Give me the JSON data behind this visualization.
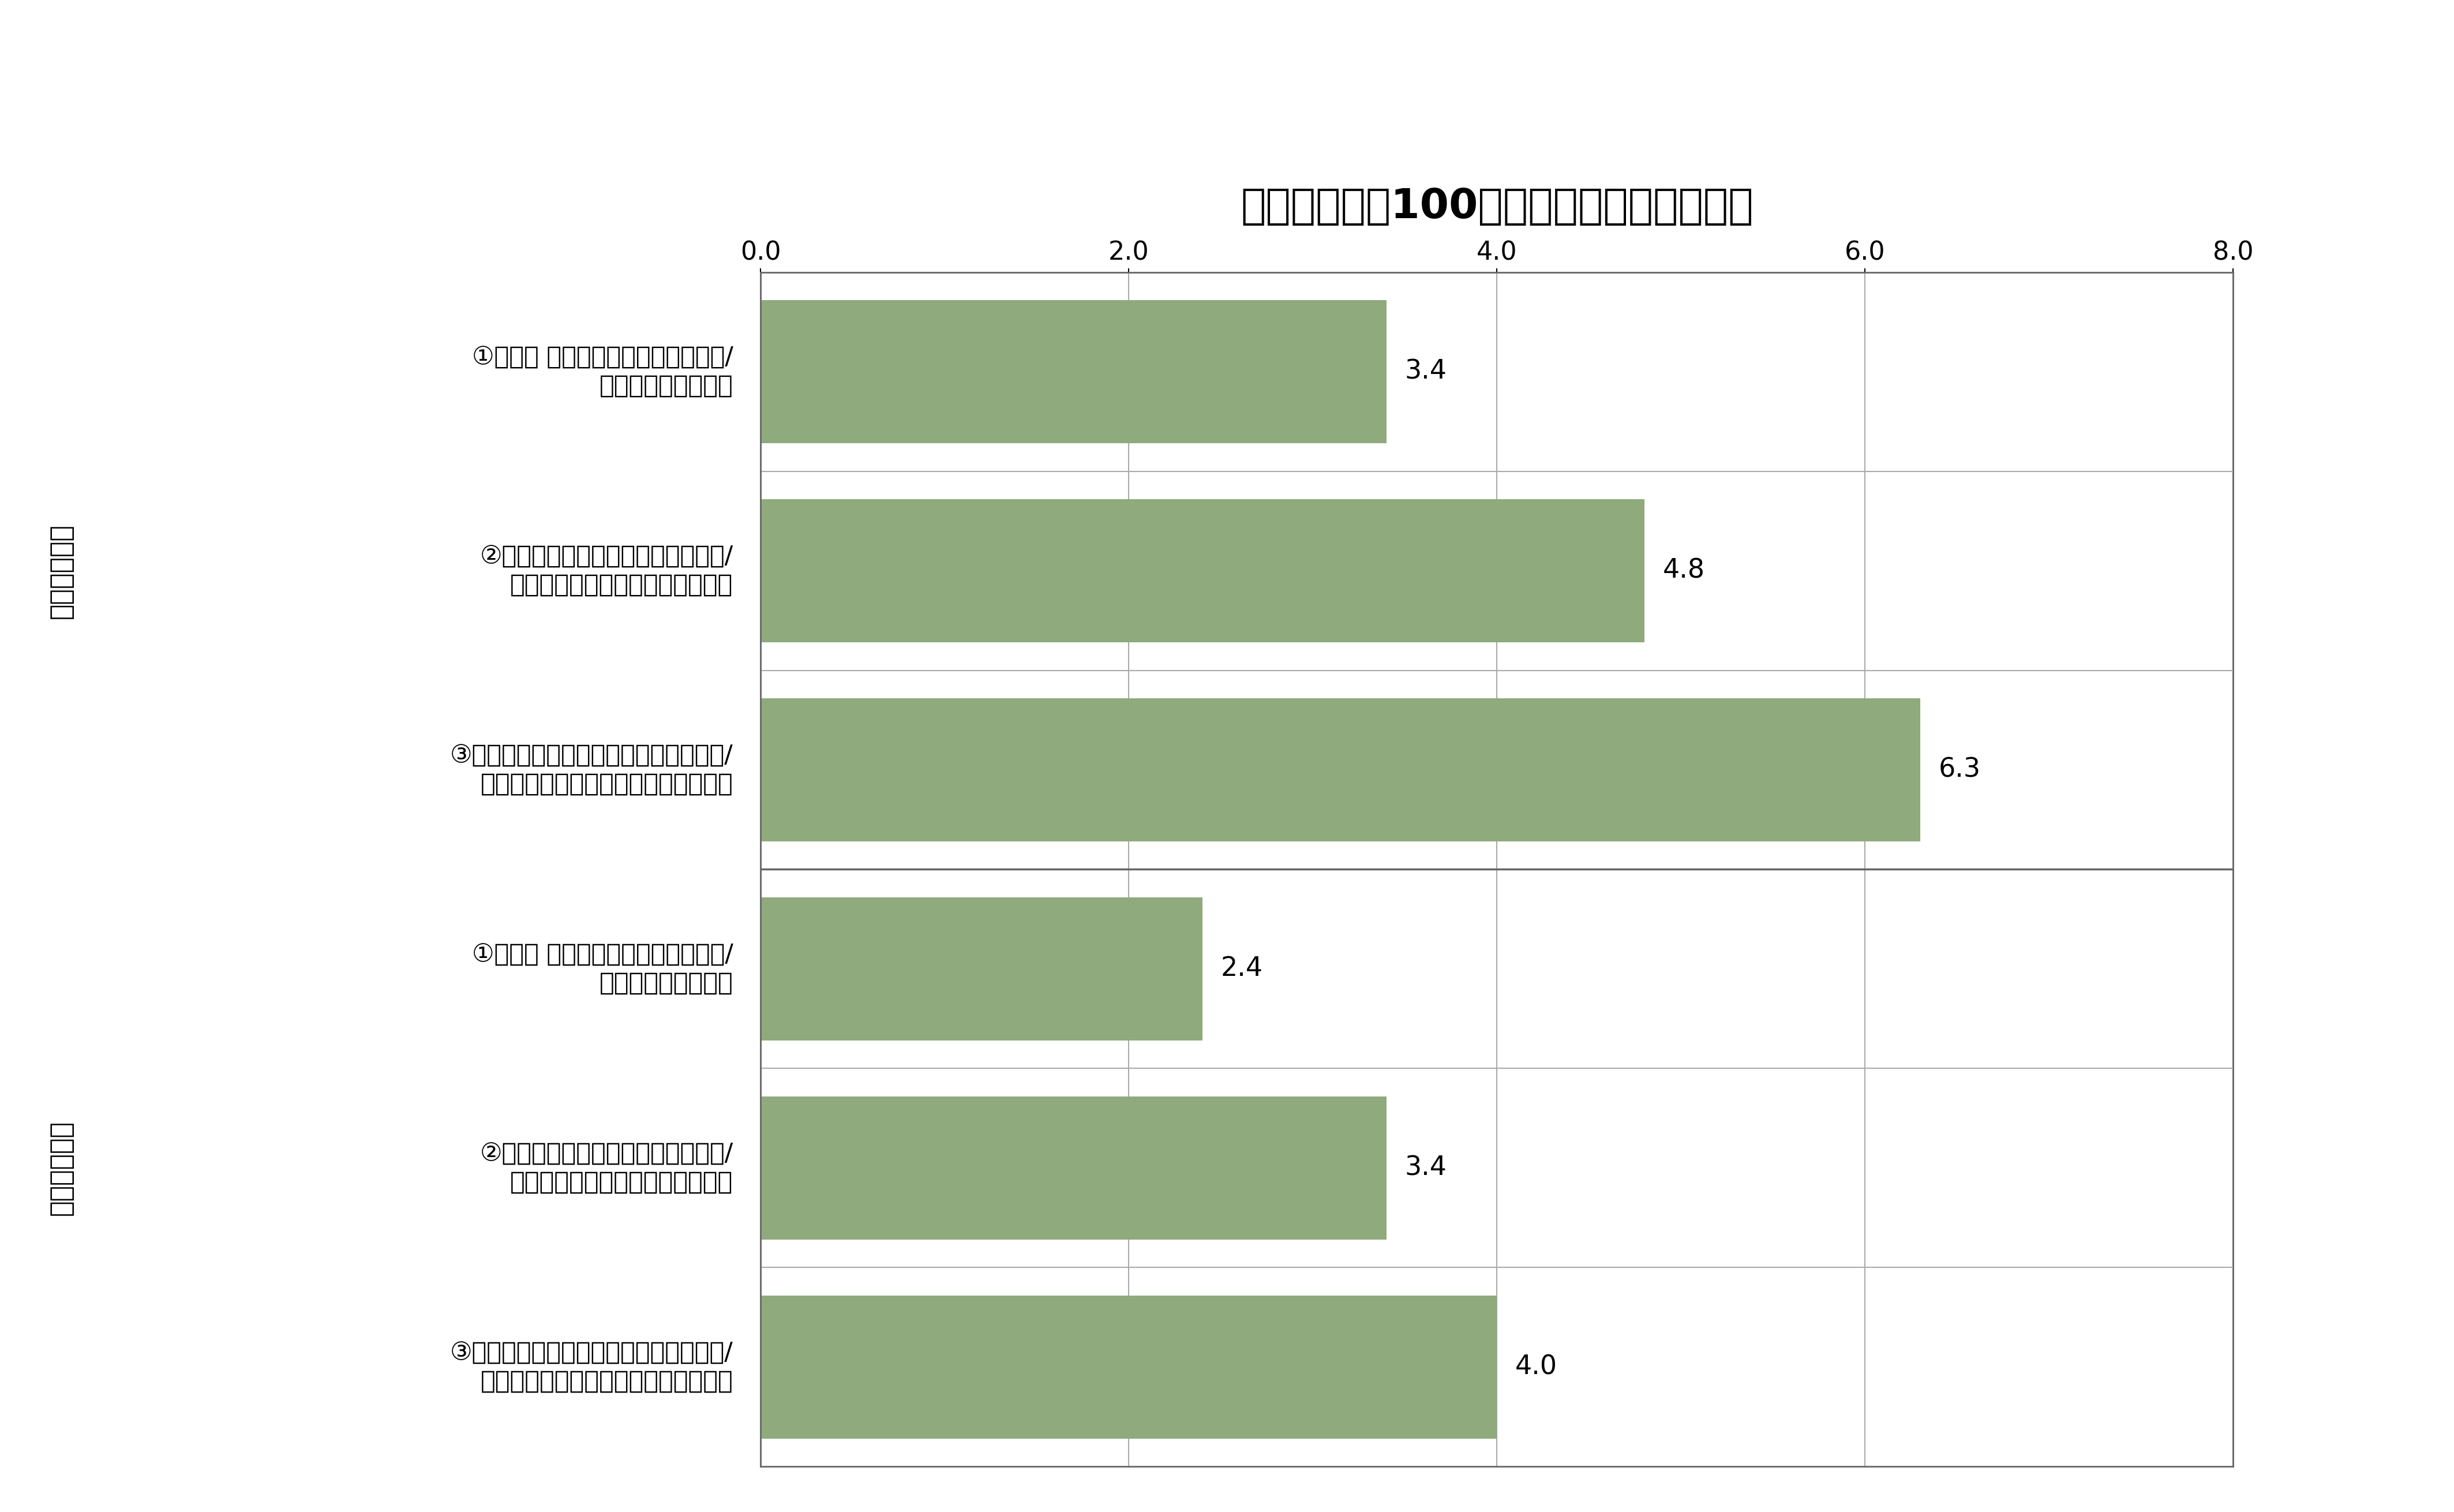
{
  "title": "研究開発費（100万ドル）あたりの論文数",
  "bars": [
    {
      "label_line1": "①大学等 による自然科学系の論文数/",
      "label_line2": "大学等の研究開発費",
      "value": 3.4,
      "group": "整数カウント"
    },
    {
      "label_line1": "②大学等による自然科学系の論文数/",
      "label_line2": "大学等の自然科学系の研究開発費",
      "value": 4.8,
      "group": "整数カウント"
    },
    {
      "label_line1": "③国立大学等による自然科学系の論文数/",
      "label_line2": "国立大学等の自然科学系の研究開発費",
      "value": 6.3,
      "group": "整数カウント"
    },
    {
      "label_line1": "①大学等 による自然科学系の論文数/",
      "label_line2": "大学等の研究開発費",
      "value": 2.4,
      "group": "分数カウント"
    },
    {
      "label_line1": "②大学等による自然科学系の論文数/",
      "label_line2": "大学等の自然科学系の研究開発費",
      "value": 3.4,
      "group": "分数カウント"
    },
    {
      "label_line1": "③国立大学等による自然科学系の論文数/",
      "label_line2": "国立大学等の自然科学系の研究開発費",
      "value": 4.0,
      "group": "分数カウント"
    }
  ],
  "bar_color": "#8faa7c",
  "xlim": [
    0.0,
    8.0
  ],
  "xticks": [
    0.0,
    2.0,
    4.0,
    6.0,
    8.0
  ],
  "group_labels": [
    "整数カウント",
    "分数カウント"
  ],
  "background_color": "#ffffff",
  "title_fontsize": 52,
  "label_fontsize": 31,
  "tick_fontsize": 32,
  "value_fontsize": 33,
  "group_label_fontsize": 33,
  "line_color_inner": "#aaaaaa",
  "line_color_group": "#666666",
  "line_color_box": "#666666"
}
